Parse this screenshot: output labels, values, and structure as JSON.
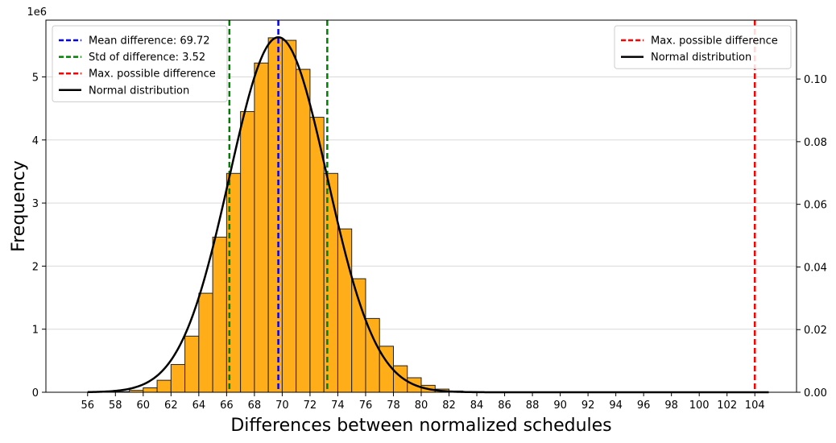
{
  "chart_data": {
    "type": "bar",
    "title": "",
    "xlabel": "Differences between normalized schedules",
    "ylabel": "Frequency",
    "y_scale_label": "1e6",
    "y2label": "",
    "xlim": [
      53,
      107
    ],
    "ylim": [
      0,
      5.9
    ],
    "y2lim": [
      0,
      0.1188
    ],
    "x_ticks": [
      56,
      58,
      60,
      62,
      64,
      66,
      68,
      70,
      72,
      74,
      76,
      78,
      80,
      82,
      84,
      86,
      88,
      90,
      92,
      94,
      96,
      98,
      100,
      102,
      104
    ],
    "y_ticks": [
      0,
      1,
      2,
      3,
      4,
      5
    ],
    "y2_ticks": [
      "0.00",
      "0.02",
      "0.04",
      "0.06",
      "0.08",
      "0.10"
    ],
    "grid": "horizontal",
    "bar_color": "#ffae1a",
    "bar_edge_color": "#222222",
    "histogram": {
      "bin_edges": [
        56,
        57,
        58,
        59,
        60,
        61,
        62,
        63,
        64,
        65,
        66,
        67,
        68,
        69,
        70,
        71,
        72,
        73,
        74,
        75,
        76,
        77,
        78,
        79,
        80,
        81,
        82,
        83,
        84,
        85,
        86,
        87,
        88,
        89,
        90,
        91,
        92,
        93,
        94,
        95,
        96,
        97,
        98,
        99,
        100,
        101,
        102,
        103,
        104,
        105
      ],
      "counts": [
        0.0,
        0.0,
        0.01,
        0.03,
        0.07,
        0.19,
        0.44,
        0.89,
        1.57,
        2.46,
        3.47,
        4.45,
        5.22,
        5.62,
        5.58,
        5.12,
        4.36,
        3.47,
        2.59,
        1.8,
        1.17,
        0.73,
        0.42,
        0.23,
        0.11,
        0.05,
        0.02,
        0.01,
        0.0,
        0.0,
        0.0,
        0.0,
        0.0,
        0.0,
        0.0,
        0.0,
        0.0,
        0.0,
        0.0,
        0.0,
        0.0,
        0.0,
        0.0,
        0.0,
        0.0,
        0.0,
        0.0,
        0.0,
        0.0
      ]
    },
    "normal_curve": {
      "mean": 69.72,
      "std": 3.52,
      "x_range": [
        56,
        105
      ],
      "color": "#000000"
    },
    "vlines": [
      {
        "x": 69.72,
        "color": "#0000ff"
      },
      {
        "x": 66.2,
        "color": "#008000"
      },
      {
        "x": 73.24,
        "color": "#008000"
      },
      {
        "x": 104,
        "color": "#ff0000"
      }
    ],
    "legend_left": {
      "position": "top-left",
      "entries": [
        {
          "label": "Mean difference: 69.72",
          "color": "#0000ff",
          "style": "dashed"
        },
        {
          "label": "Std of difference: 3.52",
          "color": "#008000",
          "style": "dashed"
        },
        {
          "label": "Max. possible difference",
          "color": "#ff0000",
          "style": "dashed"
        },
        {
          "label": "Normal distribution",
          "color": "#000000",
          "style": "solid"
        }
      ]
    },
    "legend_right": {
      "position": "top-right",
      "entries": [
        {
          "label": "Max. possible difference",
          "color": "#ff0000",
          "style": "dashed"
        },
        {
          "label": "Normal distribution",
          "color": "#000000",
          "style": "solid"
        }
      ]
    }
  }
}
